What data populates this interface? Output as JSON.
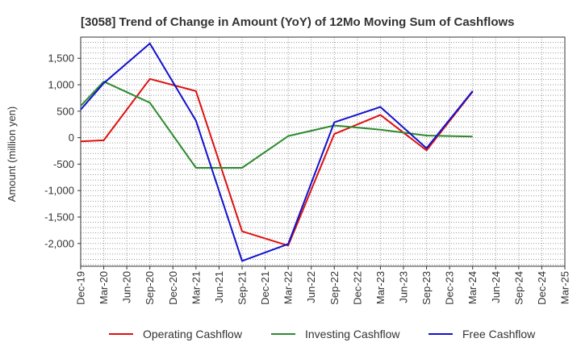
{
  "chart_data": {
    "type": "line",
    "title": "[3058]  Trend of Change in Amount (YoY) of 12Mo Moving Sum of Cashflows",
    "xlabel": "",
    "ylabel": "Amount (million yen)",
    "ylim": [
      -2430,
      1900
    ],
    "yticks": [
      1500,
      1000,
      500,
      0,
      -500,
      -1000,
      -1500,
      -2000
    ],
    "ytick_labels": [
      "1,500",
      "1,000",
      "500",
      "0",
      "-500",
      "-1,000",
      "-1,500",
      "-2,000"
    ],
    "categories": [
      "Dec-19",
      "Mar-20",
      "Jun-20",
      "Sep-20",
      "Dec-20",
      "Mar-21",
      "Jun-21",
      "Sep-21",
      "Dec-21",
      "Mar-22",
      "Jun-22",
      "Sep-22",
      "Dec-22",
      "Mar-23",
      "Jun-23",
      "Sep-23",
      "Dec-23",
      "Mar-24",
      "Jun-24",
      "Sep-24",
      "Dec-24",
      "Mar-25"
    ],
    "grid": true,
    "legend_position": "bottom",
    "series": [
      {
        "name": "Operating Cashflow",
        "color": "#dd1111",
        "points": [
          [
            0,
            -70
          ],
          [
            1,
            -50
          ],
          [
            3,
            1110
          ],
          [
            5,
            880
          ],
          [
            7,
            -1770
          ],
          [
            9,
            -2040
          ],
          [
            11,
            70
          ],
          [
            13,
            430
          ],
          [
            15,
            -240
          ],
          [
            17,
            870
          ]
        ]
      },
      {
        "name": "Investing Cashflow",
        "color": "#2e8b2e",
        "points": [
          [
            0,
            600
          ],
          [
            1,
            1060
          ],
          [
            3,
            660
          ],
          [
            5,
            -570
          ],
          [
            7,
            -570
          ],
          [
            9,
            30
          ],
          [
            11,
            230
          ],
          [
            13,
            150
          ],
          [
            15,
            40
          ],
          [
            17,
            20
          ]
        ]
      },
      {
        "name": "Free Cashflow",
        "color": "#1111cc",
        "points": [
          [
            0,
            530
          ],
          [
            1,
            1030
          ],
          [
            3,
            1780
          ],
          [
            5,
            320
          ],
          [
            7,
            -2330
          ],
          [
            9,
            -2010
          ],
          [
            11,
            290
          ],
          [
            13,
            580
          ],
          [
            15,
            -200
          ],
          [
            17,
            880
          ]
        ]
      }
    ]
  }
}
